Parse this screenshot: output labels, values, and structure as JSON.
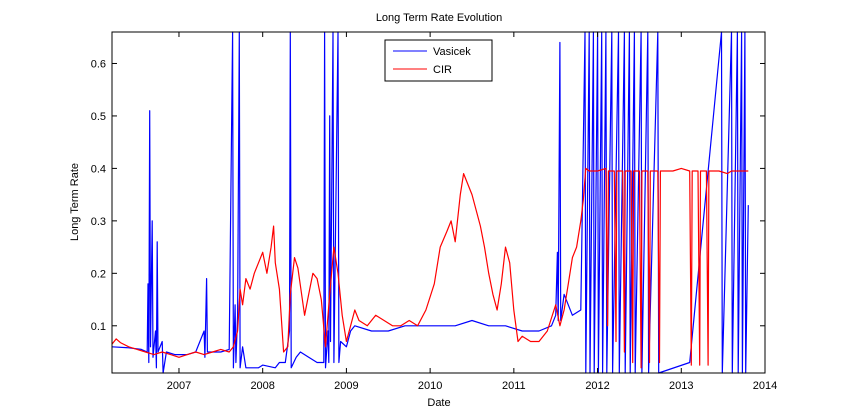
{
  "chart_data": {
    "type": "line",
    "title": "Long Term Rate Evolution",
    "xlabel": "Date",
    "ylabel": "Long Term Rate",
    "xlim": [
      2006.2,
      2014.0
    ],
    "ylim": [
      0.01,
      0.66
    ],
    "x_ticks": [
      2007,
      2008,
      2009,
      2010,
      2011,
      2012,
      2013,
      2014
    ],
    "x_tick_labels": [
      "2007",
      "2008",
      "2009",
      "2010",
      "2011",
      "2012",
      "2013",
      "2014"
    ],
    "y_ticks": [
      0.1,
      0.2,
      0.3,
      0.4,
      0.5,
      0.6
    ],
    "y_tick_labels": [
      "0.1",
      "0.2",
      "0.3",
      "0.4",
      "0.5",
      "0.6"
    ],
    "grid": false,
    "legend_position": "top-center",
    "series": [
      {
        "name": "Vasicek",
        "color": "#0000ff",
        "points": [
          [
            2006.2,
            0.06
          ],
          [
            2006.4,
            0.058
          ],
          [
            2006.55,
            0.055
          ],
          [
            2006.62,
            0.05
          ],
          [
            2006.63,
            0.18
          ],
          [
            2006.64,
            0.03
          ],
          [
            2006.65,
            0.51
          ],
          [
            2006.66,
            0.06
          ],
          [
            2006.68,
            0.3
          ],
          [
            2006.69,
            0.04
          ],
          [
            2006.72,
            0.09
          ],
          [
            2006.73,
            0.02
          ],
          [
            2006.74,
            0.26
          ],
          [
            2006.75,
            0.05
          ],
          [
            2006.8,
            0.07
          ],
          [
            2006.81,
            0.01
          ],
          [
            2006.85,
            0.05
          ],
          [
            2006.95,
            0.045
          ],
          [
            2007.1,
            0.045
          ],
          [
            2007.2,
            0.05
          ],
          [
            2007.3,
            0.09
          ],
          [
            2007.31,
            0.04
          ],
          [
            2007.33,
            0.19
          ],
          [
            2007.34,
            0.05
          ],
          [
            2007.5,
            0.05
          ],
          [
            2007.6,
            0.055
          ],
          [
            2007.64,
            0.66
          ],
          [
            2007.65,
            0.02
          ],
          [
            2007.67,
            0.14
          ],
          [
            2007.68,
            0.03
          ],
          [
            2007.7,
            0.12
          ],
          [
            2007.72,
            0.66
          ],
          [
            2007.73,
            0.02
          ],
          [
            2007.76,
            0.06
          ],
          [
            2007.8,
            0.02
          ],
          [
            2007.95,
            0.02
          ],
          [
            2008.0,
            0.025
          ],
          [
            2008.15,
            0.02
          ],
          [
            2008.2,
            0.03
          ],
          [
            2008.27,
            0.03
          ],
          [
            2008.32,
            0.09
          ],
          [
            2008.33,
            0.66
          ],
          [
            2008.34,
            0.02
          ],
          [
            2008.4,
            0.04
          ],
          [
            2008.45,
            0.05
          ],
          [
            2008.55,
            0.04
          ],
          [
            2008.65,
            0.03
          ],
          [
            2008.73,
            0.03
          ],
          [
            2008.74,
            0.66
          ],
          [
            2008.75,
            0.02
          ],
          [
            2008.78,
            0.09
          ],
          [
            2008.79,
            0.03
          ],
          [
            2008.8,
            0.5
          ],
          [
            2008.81,
            0.07
          ],
          [
            2008.84,
            0.66
          ],
          [
            2008.85,
            0.03
          ],
          [
            2008.9,
            0.66
          ],
          [
            2008.91,
            0.03
          ],
          [
            2008.93,
            0.07
          ],
          [
            2009.0,
            0.06
          ],
          [
            2009.05,
            0.09
          ],
          [
            2009.1,
            0.1
          ],
          [
            2009.3,
            0.09
          ],
          [
            2009.5,
            0.09
          ],
          [
            2009.7,
            0.1
          ],
          [
            2009.9,
            0.1
          ],
          [
            2010.1,
            0.1
          ],
          [
            2010.3,
            0.1
          ],
          [
            2010.5,
            0.11
          ],
          [
            2010.7,
            0.1
          ],
          [
            2010.9,
            0.1
          ],
          [
            2011.1,
            0.09
          ],
          [
            2011.3,
            0.09
          ],
          [
            2011.45,
            0.1
          ],
          [
            2011.5,
            0.12
          ],
          [
            2011.52,
            0.24
          ],
          [
            2011.53,
            0.11
          ],
          [
            2011.55,
            0.64
          ],
          [
            2011.56,
            0.11
          ],
          [
            2011.6,
            0.16
          ],
          [
            2011.7,
            0.12
          ],
          [
            2011.8,
            0.13
          ],
          [
            2011.85,
            0.66
          ],
          [
            2011.86,
            0.01
          ],
          [
            2011.9,
            0.66
          ],
          [
            2011.91,
            0.01
          ],
          [
            2011.95,
            0.66
          ],
          [
            2011.96,
            0.01
          ],
          [
            2012.0,
            0.66
          ],
          [
            2012.01,
            0.01
          ],
          [
            2012.05,
            0.66
          ],
          [
            2012.06,
            0.01
          ],
          [
            2012.1,
            0.66
          ],
          [
            2012.11,
            0.01
          ],
          [
            2012.17,
            0.66
          ],
          [
            2012.18,
            0.01
          ],
          [
            2012.25,
            0.66
          ],
          [
            2012.26,
            0.01
          ],
          [
            2012.32,
            0.66
          ],
          [
            2012.33,
            0.01
          ],
          [
            2012.38,
            0.66
          ],
          [
            2012.39,
            0.01
          ],
          [
            2012.44,
            0.66
          ],
          [
            2012.45,
            0.01
          ],
          [
            2012.52,
            0.66
          ],
          [
            2012.53,
            0.01
          ],
          [
            2012.6,
            0.66
          ],
          [
            2012.61,
            0.01
          ],
          [
            2012.72,
            0.66
          ],
          [
            2012.73,
            0.01
          ],
          [
            2013.1,
            0.03
          ],
          [
            2013.48,
            0.66
          ],
          [
            2013.49,
            0.01
          ],
          [
            2013.6,
            0.66
          ],
          [
            2013.61,
            0.01
          ],
          [
            2013.67,
            0.66
          ],
          [
            2013.68,
            0.01
          ],
          [
            2013.72,
            0.66
          ],
          [
            2013.73,
            0.01
          ],
          [
            2013.76,
            0.66
          ],
          [
            2013.77,
            0.01
          ],
          [
            2013.8,
            0.33
          ]
        ]
      },
      {
        "name": "CIR",
        "color": "#ff0000",
        "points": [
          [
            2006.2,
            0.065
          ],
          [
            2006.25,
            0.075
          ],
          [
            2006.3,
            0.068
          ],
          [
            2006.4,
            0.06
          ],
          [
            2006.5,
            0.055
          ],
          [
            2006.6,
            0.05
          ],
          [
            2006.7,
            0.045
          ],
          [
            2006.8,
            0.05
          ],
          [
            2006.9,
            0.045
          ],
          [
            2007.0,
            0.04
          ],
          [
            2007.1,
            0.045
          ],
          [
            2007.2,
            0.05
          ],
          [
            2007.3,
            0.045
          ],
          [
            2007.4,
            0.05
          ],
          [
            2007.5,
            0.055
          ],
          [
            2007.6,
            0.05
          ],
          [
            2007.65,
            0.06
          ],
          [
            2007.7,
            0.09
          ],
          [
            2007.73,
            0.17
          ],
          [
            2007.76,
            0.14
          ],
          [
            2007.8,
            0.19
          ],
          [
            2007.85,
            0.17
          ],
          [
            2007.9,
            0.2
          ],
          [
            2007.95,
            0.22
          ],
          [
            2008.0,
            0.24
          ],
          [
            2008.05,
            0.2
          ],
          [
            2008.1,
            0.25
          ],
          [
            2008.13,
            0.29
          ],
          [
            2008.15,
            0.22
          ],
          [
            2008.2,
            0.17
          ],
          [
            2008.25,
            0.05
          ],
          [
            2008.3,
            0.06
          ],
          [
            2008.33,
            0.16
          ],
          [
            2008.38,
            0.23
          ],
          [
            2008.42,
            0.21
          ],
          [
            2008.5,
            0.12
          ],
          [
            2008.55,
            0.16
          ],
          [
            2008.6,
            0.2
          ],
          [
            2008.65,
            0.19
          ],
          [
            2008.7,
            0.15
          ],
          [
            2008.75,
            0.06
          ],
          [
            2008.8,
            0.16
          ],
          [
            2008.85,
            0.25
          ],
          [
            2008.9,
            0.2
          ],
          [
            2008.95,
            0.12
          ],
          [
            2009.0,
            0.07
          ],
          [
            2009.05,
            0.1
          ],
          [
            2009.1,
            0.13
          ],
          [
            2009.15,
            0.11
          ],
          [
            2009.25,
            0.1
          ],
          [
            2009.35,
            0.12
          ],
          [
            2009.45,
            0.11
          ],
          [
            2009.55,
            0.1
          ],
          [
            2009.65,
            0.1
          ],
          [
            2009.75,
            0.11
          ],
          [
            2009.85,
            0.1
          ],
          [
            2009.95,
            0.13
          ],
          [
            2010.05,
            0.18
          ],
          [
            2010.12,
            0.25
          ],
          [
            2010.2,
            0.28
          ],
          [
            2010.25,
            0.3
          ],
          [
            2010.3,
            0.26
          ],
          [
            2010.36,
            0.35
          ],
          [
            2010.4,
            0.39
          ],
          [
            2010.45,
            0.37
          ],
          [
            2010.5,
            0.35
          ],
          [
            2010.55,
            0.32
          ],
          [
            2010.6,
            0.29
          ],
          [
            2010.65,
            0.25
          ],
          [
            2010.7,
            0.2
          ],
          [
            2010.75,
            0.16
          ],
          [
            2010.8,
            0.13
          ],
          [
            2010.85,
            0.18
          ],
          [
            2010.9,
            0.25
          ],
          [
            2010.95,
            0.22
          ],
          [
            2011.0,
            0.13
          ],
          [
            2011.05,
            0.07
          ],
          [
            2011.1,
            0.08
          ],
          [
            2011.2,
            0.07
          ],
          [
            2011.3,
            0.07
          ],
          [
            2011.4,
            0.09
          ],
          [
            2011.5,
            0.14
          ],
          [
            2011.55,
            0.1
          ],
          [
            2011.6,
            0.13
          ],
          [
            2011.65,
            0.18
          ],
          [
            2011.7,
            0.23
          ],
          [
            2011.75,
            0.25
          ],
          [
            2011.8,
            0.3
          ],
          [
            2011.83,
            0.34
          ],
          [
            2011.86,
            0.4
          ],
          [
            2011.9,
            0.395
          ],
          [
            2012.0,
            0.395
          ],
          [
            2012.1,
            0.4
          ],
          [
            2012.12,
            0.1
          ],
          [
            2012.13,
            0.395
          ],
          [
            2012.2,
            0.395
          ],
          [
            2012.22,
            0.07
          ],
          [
            2012.23,
            0.395
          ],
          [
            2012.3,
            0.395
          ],
          [
            2012.32,
            0.05
          ],
          [
            2012.33,
            0.395
          ],
          [
            2012.4,
            0.395
          ],
          [
            2012.42,
            0.03
          ],
          [
            2012.43,
            0.395
          ],
          [
            2012.5,
            0.395
          ],
          [
            2012.52,
            0.02
          ],
          [
            2012.53,
            0.395
          ],
          [
            2012.6,
            0.395
          ],
          [
            2012.62,
            0.03
          ],
          [
            2012.63,
            0.395
          ],
          [
            2012.72,
            0.395
          ],
          [
            2012.74,
            0.03
          ],
          [
            2012.75,
            0.395
          ],
          [
            2012.9,
            0.395
          ],
          [
            2013.0,
            0.4
          ],
          [
            2013.1,
            0.395
          ],
          [
            2013.12,
            0.025
          ],
          [
            2013.13,
            0.395
          ],
          [
            2013.2,
            0.395
          ],
          [
            2013.22,
            0.025
          ],
          [
            2013.23,
            0.395
          ],
          [
            2013.3,
            0.395
          ],
          [
            2013.32,
            0.025
          ],
          [
            2013.33,
            0.395
          ],
          [
            2013.45,
            0.395
          ],
          [
            2013.55,
            0.39
          ],
          [
            2013.6,
            0.395
          ],
          [
            2013.7,
            0.395
          ],
          [
            2013.8,
            0.395
          ]
        ]
      }
    ]
  }
}
